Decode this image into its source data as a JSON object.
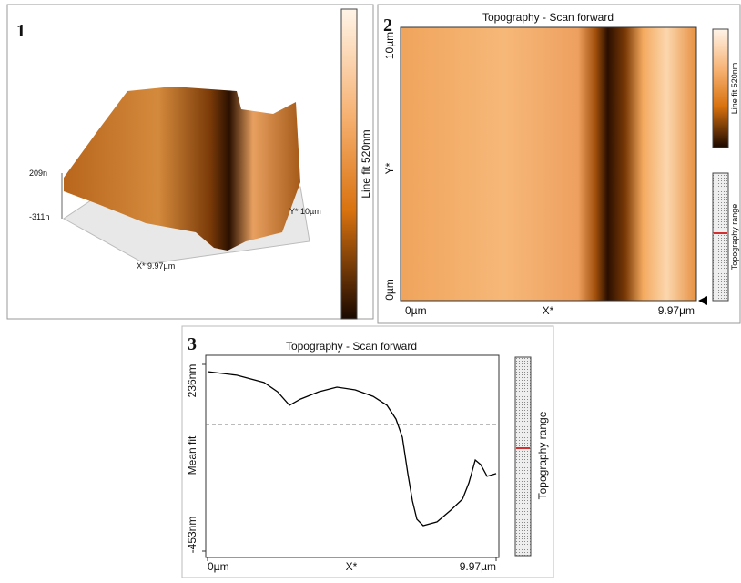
{
  "panel1": {
    "number": "1",
    "z_top": "209n",
    "z_bottom": "-311n",
    "y_axis": "Y* 10µm",
    "x_axis": "X* 9.97µm",
    "colorbar_label": "Line fit 520nm"
  },
  "panel2": {
    "number": "2",
    "title": "Topography - Scan forward",
    "y_top": "10µm",
    "y_label": "Y*",
    "y_bottom": "0µm",
    "x_left": "0µm",
    "x_label": "X*",
    "x_right": "9.97µm",
    "colorbar_label": "Line fit 520nm",
    "range_label": "Topography range"
  },
  "panel3": {
    "number": "3",
    "title": "Topography - Scan forward",
    "y_label": "Mean fit",
    "x_label": "X*",
    "range_label": "Topography range",
    "yticks": [
      {
        "value": 236,
        "label": "236nm"
      },
      {
        "value": -453,
        "label": "-453nm"
      }
    ],
    "xticks": [
      {
        "value": 0,
        "label": "0µm"
      },
      {
        "value": 9.97,
        "label": "9.97µm"
      }
    ],
    "profile": {
      "x": [
        0,
        1.01,
        1.95,
        2.42,
        2.83,
        3.21,
        3.84,
        4.47,
        5.1,
        5.72,
        6.2,
        6.51,
        6.73,
        6.92,
        7.08,
        7.23,
        7.45,
        7.93,
        8.4,
        8.81,
        9.03,
        9.25,
        9.44,
        9.66,
        9.97
      ],
      "values": [
        209,
        196,
        169,
        135,
        85,
        108,
        135,
        152,
        142,
        118,
        85,
        34,
        -33,
        -167,
        -268,
        -335,
        -359,
        -345,
        -302,
        -261,
        -201,
        -117,
        -134,
        -177,
        -167
      ]
    }
  }
}
